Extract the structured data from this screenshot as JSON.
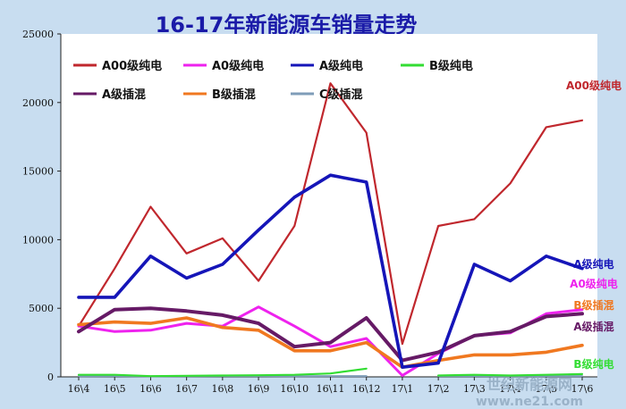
{
  "chart_data": {
    "type": "line",
    "title": "16-17年新能源车销量走势",
    "xlabel": "",
    "ylabel": "",
    "ylim": [
      0,
      25000
    ],
    "yticks": [
      0,
      5000,
      10000,
      15000,
      20000,
      25000
    ],
    "grid": false,
    "legend_position": "top-left",
    "categories": [
      "16\\4",
      "16\\5",
      "16\\6",
      "16\\7",
      "16\\8",
      "16\\9",
      "16\\10",
      "16\\11",
      "16\\12",
      "17\\1",
      "17\\2",
      "17\\3",
      "17\\4",
      "17\\5",
      "17\\6"
    ],
    "series": [
      {
        "name": "A00级纯电",
        "color": "#c0272d",
        "end_label": "A00级纯电",
        "values": [
          3700,
          7900,
          12400,
          9000,
          10100,
          7000,
          11000,
          21400,
          17800,
          2400,
          11000,
          11500,
          14100,
          18200,
          18700
        ]
      },
      {
        "name": "A0级纯电",
        "color": "#ee22ee",
        "end_label": "A0级纯电",
        "values": [
          3700,
          3300,
          3400,
          3900,
          3700,
          5100,
          3700,
          2200,
          2800,
          100,
          1700,
          3000,
          3200,
          4600,
          4900
        ]
      },
      {
        "name": "A级纯电",
        "color": "#1515b8",
        "end_label": "A级纯电",
        "values": [
          5800,
          5800,
          8800,
          7200,
          8200,
          10700,
          13100,
          14700,
          14200,
          700,
          1000,
          8200,
          7000,
          8800,
          7900
        ]
      },
      {
        "name": "B级纯电",
        "color": "#33dd33",
        "end_label": "B级纯电",
        "values": [
          150,
          150,
          50,
          80,
          100,
          120,
          150,
          250,
          600,
          null,
          100,
          150,
          100,
          150,
          200
        ]
      },
      {
        "name": "A级插混",
        "color": "#661a66",
        "end_label": "A级插混",
        "values": [
          3300,
          4900,
          5000,
          4800,
          4500,
          3900,
          2200,
          2500,
          4300,
          1200,
          1800,
          3000,
          3300,
          4400,
          4600
        ]
      },
      {
        "name": "B级插混",
        "color": "#f07820",
        "end_label": "B级插混",
        "values": [
          3800,
          4000,
          3900,
          4300,
          3600,
          3400,
          1900,
          1900,
          2500,
          700,
          1200,
          1600,
          1600,
          1800,
          2300
        ]
      },
      {
        "name": "C级插混",
        "color": "#7f9db8",
        "end_label": "",
        "values": [
          50,
          60,
          40,
          50,
          60,
          60,
          50,
          60,
          60,
          null,
          60,
          60,
          50,
          60,
          60
        ]
      }
    ]
  },
  "watermark": {
    "line1": "世纪新能源网",
    "line2": "www.ne21.com"
  }
}
